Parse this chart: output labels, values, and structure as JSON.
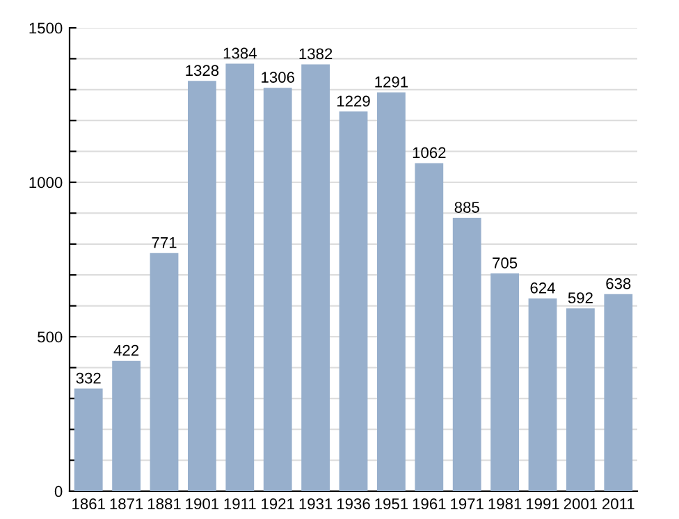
{
  "chart_data": {
    "type": "bar",
    "categories": [
      "1861",
      "1871",
      "1881",
      "1901",
      "1911",
      "1921",
      "1931",
      "1936",
      "1951",
      "1961",
      "1971",
      "1981",
      "1991",
      "2001",
      "2011"
    ],
    "values": [
      332,
      422,
      771,
      1328,
      1384,
      1306,
      1382,
      1229,
      1291,
      1062,
      885,
      705,
      624,
      592,
      638
    ],
    "color": "#97afcc",
    "ylim": [
      0,
      1500
    ],
    "yticks": [
      0,
      {
        "value": 100,
        "label": null
      },
      {
        "value": 200,
        "label": null
      },
      {
        "value": 300,
        "label": null
      },
      {
        "value": 400,
        "label": null
      },
      500,
      {
        "value": 600,
        "label": null
      },
      {
        "value": 700,
        "label": null
      },
      {
        "value": 800,
        "label": null
      },
      {
        "value": 900,
        "label": null
      },
      1000,
      {
        "value": 1100,
        "label": null
      },
      {
        "value": 1200,
        "label": null
      },
      {
        "value": 1300,
        "label": null
      },
      {
        "value": 1400,
        "label": null
      },
      1500
    ],
    "grid": "y",
    "data_labels": true
  }
}
